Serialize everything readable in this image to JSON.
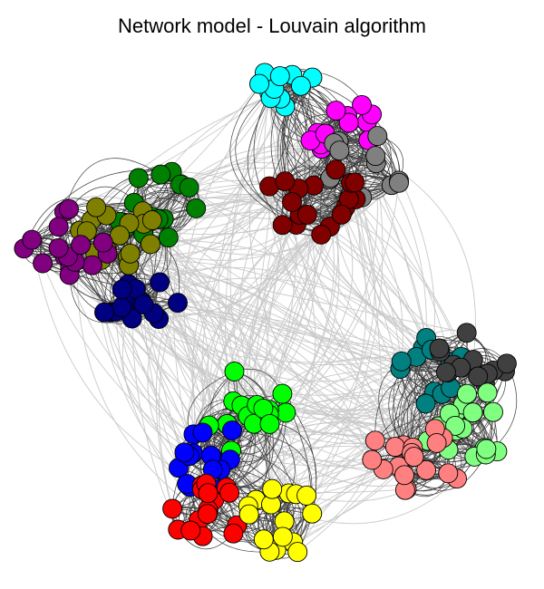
{
  "title": "Network model - Louvain algorithm",
  "chart_data": {
    "type": "network",
    "title": "Network model - Louvain algorithm",
    "grid": false,
    "legend": "none",
    "edge_colors": {
      "within_community": "#3d3d3d",
      "between_communities": "#c9c9c9"
    },
    "node_outline": "#000000",
    "communities": [
      {
        "id": 1,
        "color": "#00FFFF",
        "nodes": 12
      },
      {
        "id": 2,
        "color": "#FF00FF",
        "nodes": 12
      },
      {
        "id": 3,
        "color": "#808080",
        "nodes": 14
      },
      {
        "id": 4,
        "color": "#800000",
        "nodes": 18
      },
      {
        "id": 5,
        "color": "#008000",
        "nodes": 16
      },
      {
        "id": 6,
        "color": "#808000",
        "nodes": 17
      },
      {
        "id": 7,
        "color": "#800080",
        "nodes": 16
      },
      {
        "id": 8,
        "color": "#000080",
        "nodes": 15
      },
      {
        "id": 9,
        "color": "#008080",
        "nodes": 14
      },
      {
        "id": 10,
        "color": "#404040",
        "nodes": 14
      },
      {
        "id": 11,
        "color": "#80FF80",
        "nodes": 18
      },
      {
        "id": 12,
        "color": "#FF8080",
        "nodes": 18
      },
      {
        "id": 13,
        "color": "#00FF00",
        "nodes": 15
      },
      {
        "id": 14,
        "color": "#0000FF",
        "nodes": 16
      },
      {
        "id": 15,
        "color": "#FF0000",
        "nodes": 16
      },
      {
        "id": 16,
        "color": "#FFFF00",
        "nodes": 16
      }
    ],
    "super_clusters": [
      {
        "position": "top",
        "communities": [
          1,
          2,
          3,
          4
        ]
      },
      {
        "position": "left",
        "communities": [
          5,
          6,
          7,
          8
        ]
      },
      {
        "position": "right",
        "communities": [
          9,
          10,
          11,
          12
        ]
      },
      {
        "position": "bottom",
        "communities": [
          13,
          14,
          15,
          16
        ]
      }
    ]
  }
}
